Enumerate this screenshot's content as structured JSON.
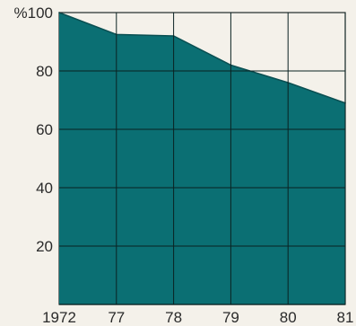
{
  "chart_data": {
    "type": "area",
    "title": "",
    "xlabel": "",
    "ylabel": "",
    "categories": [
      "1972",
      "77",
      "78",
      "79",
      "80",
      "81"
    ],
    "y_tick_labels": [
      "%100",
      "80",
      "60",
      "40",
      "20"
    ],
    "y_ticks": [
      100,
      80,
      60,
      40,
      20
    ],
    "ylim": [
      0,
      100
    ],
    "values": [
      100,
      92.5,
      92,
      82,
      76,
      69
    ],
    "grid": true,
    "legend": "none",
    "colors": {
      "fill": "#0b6f73",
      "grid": "#0a2222",
      "background": "#f4f1ea",
      "frame": "#1f2a2a"
    }
  }
}
